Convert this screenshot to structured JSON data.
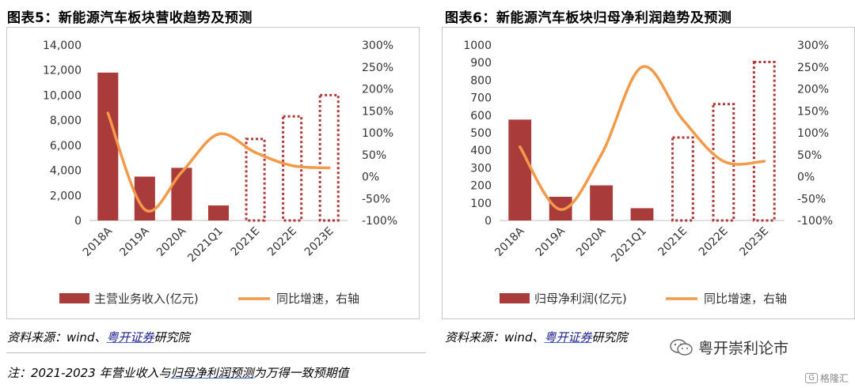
{
  "charts": [
    {
      "title": "图表5：新能源汽车板块营收趋势及预测",
      "source_prefix": "资料来源：wind、",
      "source_link": "粤开证券",
      "source_suffix": "研究院"
    },
    {
      "title": "图表6：新能源汽车板块归母净利润趋势及预测",
      "source_prefix": "资料来源：wind、",
      "source_link": "粤开证券",
      "source_suffix": "研究院"
    }
  ],
  "note": {
    "prefix": "注：2021-2023 年营业收入与",
    "link": "归母净利润预测",
    "suffix": "为万得一致预期值"
  },
  "brand": {
    "name": "粤开崇利论市"
  },
  "watermark": {
    "label": "格隆汇",
    "badge": "G"
  },
  "colors": {
    "bar": "#a93b3b",
    "line": "#f39a4a",
    "forecast_border": "#b03a3a"
  },
  "chart_data": [
    {
      "type": "bar",
      "categories": [
        "2018A",
        "2019A",
        "2020A",
        "2021Q1",
        "2021E",
        "2022E",
        "2023E"
      ],
      "series": [
        {
          "name": "主营业务收入(亿元)",
          "type": "bar",
          "axis": "left",
          "values": [
            11800,
            3500,
            4200,
            1200,
            6600,
            8400,
            10100
          ],
          "forecast": [
            false,
            false,
            false,
            false,
            true,
            true,
            true
          ]
        },
        {
          "name": "同比增速，右轴",
          "type": "line",
          "axis": "right",
          "values": [
            145,
            -75,
            10,
            97,
            55,
            25,
            20
          ]
        }
      ],
      "yticks": [
        "0",
        "2,000",
        "4,000",
        "6,000",
        "8,000",
        "10,000",
        "12,000",
        "14,000"
      ],
      "ylim": [
        0,
        14000
      ],
      "y2ticks": [
        "-100%",
        "-50%",
        "0%",
        "50%",
        "100%",
        "150%",
        "200%",
        "250%",
        "300%"
      ],
      "y2lim": [
        -100,
        300
      ],
      "legend": "bottom"
    },
    {
      "type": "bar",
      "categories": [
        "2018A",
        "2019A",
        "2020A",
        "2021Q1",
        "2021E",
        "2022E",
        "2023E"
      ],
      "series": [
        {
          "name": "归母净利润(亿元)",
          "type": "bar",
          "axis": "left",
          "values": [
            575,
            135,
            200,
            70,
            480,
            670,
            910
          ],
          "forecast": [
            false,
            false,
            false,
            false,
            true,
            true,
            true
          ]
        },
        {
          "name": "同比增速，右轴",
          "type": "line",
          "axis": "right",
          "values": [
            68,
            -75,
            50,
            250,
            130,
            35,
            35
          ]
        }
      ],
      "yticks": [
        "0",
        "100",
        "200",
        "300",
        "400",
        "500",
        "600",
        "700",
        "800",
        "900",
        "1000"
      ],
      "ylim": [
        0,
        1000
      ],
      "y2ticks": [
        "-100%",
        "-50%",
        "0%",
        "50%",
        "100%",
        "150%",
        "200%",
        "250%",
        "300%"
      ],
      "y2lim": [
        -100,
        300
      ],
      "legend": "bottom"
    }
  ]
}
